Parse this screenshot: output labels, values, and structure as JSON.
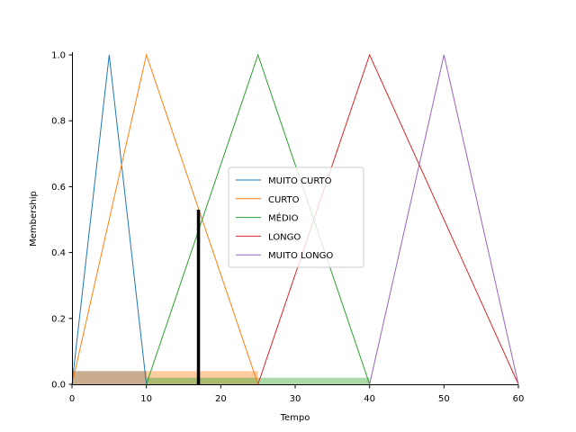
{
  "chart_data": {
    "type": "line",
    "xlabel": "Tempo",
    "ylabel": "Membership",
    "xlim": [
      0,
      60
    ],
    "ylim": [
      0,
      1.0
    ],
    "x_ticks": [
      "0",
      "10",
      "20",
      "30",
      "40",
      "50",
      "60"
    ],
    "y_ticks": [
      "0.0",
      "0.2",
      "0.4",
      "0.6",
      "0.8",
      "1.0"
    ],
    "grid": false,
    "legend_position": "center",
    "series": [
      {
        "name": "MUITO CURTO",
        "color": "#1f77b4",
        "x": [
          0,
          5,
          10
        ],
        "y": [
          0,
          1,
          0
        ]
      },
      {
        "name": "CURTO",
        "color": "#ff7f0e",
        "x": [
          0,
          10,
          25
        ],
        "y": [
          0,
          1,
          0
        ]
      },
      {
        "name": "MÉDIO",
        "color": "#2ca02c",
        "x": [
          10,
          25,
          40
        ],
        "y": [
          0,
          1,
          0
        ]
      },
      {
        "name": "LONGO",
        "color": "#d62728",
        "x": [
          25,
          40,
          60
        ],
        "y": [
          0,
          1,
          0
        ]
      },
      {
        "name": "MUITO LONGO",
        "color": "#9467bd",
        "x": [
          40,
          50,
          60
        ],
        "y": [
          0,
          1,
          0
        ]
      }
    ],
    "activation_fills": [
      {
        "series": "MUITO CURTO",
        "color": "#1f77b4",
        "x": [
          0,
          10
        ],
        "level": 0.04
      },
      {
        "series": "CURTO",
        "color": "#ff7f0e",
        "x": [
          0,
          25
        ],
        "level": 0.04
      },
      {
        "series": "MÉDIO",
        "color": "#2ca02c",
        "x": [
          10,
          40
        ],
        "level": 0.02
      },
      {
        "series": "LONGO",
        "color": "#d62728",
        "x": [
          25,
          60
        ],
        "level": 0.0
      },
      {
        "series": "MUITO LONGO",
        "color": "#9467bd",
        "x": [
          40,
          60
        ],
        "level": 0.0
      }
    ],
    "output_marker": {
      "x": 17,
      "y": 0.53,
      "color": "#000000"
    }
  }
}
